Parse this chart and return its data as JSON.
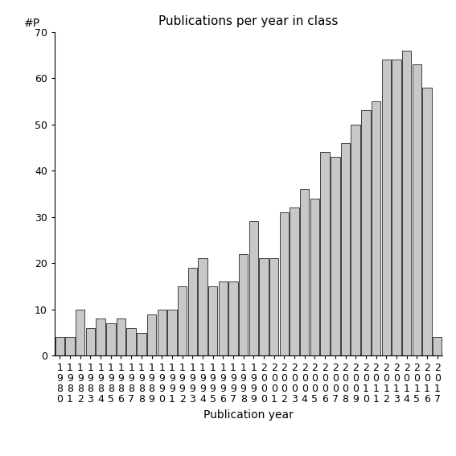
{
  "title": "Publications per year in class",
  "xlabel": "Publication year",
  "ylabel": "#P",
  "ylim": [
    0,
    70
  ],
  "yticks": [
    0,
    10,
    20,
    30,
    40,
    50,
    60,
    70
  ],
  "bar_color": "#c8c8c8",
  "bar_edge_color": "#000000",
  "years": [
    1980,
    1981,
    1982,
    1983,
    1984,
    1985,
    1986,
    1987,
    1988,
    1989,
    1990,
    1991,
    1992,
    1993,
    1994,
    1995,
    1996,
    1997,
    1998,
    1999,
    2000,
    2001,
    2002,
    2003,
    2004,
    2005,
    2006,
    2007,
    2008,
    2009,
    2010,
    2011,
    2012,
    2013,
    2014,
    2015,
    2016,
    2017
  ],
  "values": [
    4,
    4,
    10,
    6,
    8,
    7,
    8,
    6,
    5,
    9,
    10,
    10,
    15,
    19,
    21,
    15,
    16,
    16,
    22,
    29,
    21,
    21,
    31,
    32,
    36,
    34,
    44,
    43,
    46,
    50,
    53,
    55,
    64,
    64,
    66,
    63,
    58,
    4
  ],
  "background_color": "#ffffff",
  "title_fontsize": 11,
  "label_fontsize": 10,
  "tick_fontsize": 9,
  "bar_linewidth": 0.5
}
